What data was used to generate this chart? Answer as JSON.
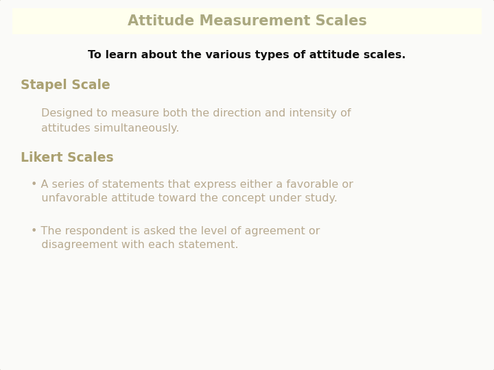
{
  "title": "Attitude Measurement Scales",
  "title_bg": "#ffffee",
  "title_color": "#aaa880",
  "title_fontsize": 15,
  "subtitle": "To learn about the various types of attitude scales.",
  "subtitle_color": "#111111",
  "subtitle_fontsize": 11.5,
  "section1_heading": "Stapel Scale",
  "section1_color": "#aaa070",
  "section1_fontsize": 13.5,
  "section1_body": "Designed to measure both the direction and intensity of\nattitudes simultaneously.",
  "section1_body_color": "#b8aa90",
  "section1_body_fontsize": 11.5,
  "section2_heading": "Likert Scales",
  "section2_color": "#aaa070",
  "section2_fontsize": 13.5,
  "bullet1_line1": "• A series of statements that express either a favorable or",
  "bullet1_line2": "   unfavorable attitude toward the concept under study.",
  "bullet2_line1": "• The respondent is asked the level of agreement or",
  "bullet2_line2": "   disagreement with each statement.",
  "bullet_color": "#b8aa90",
  "bullet_fontsize": 11.5,
  "bg_color": "#fafaf8",
  "outer_bg": "#ffffff",
  "card_edge": "#ccccbb"
}
